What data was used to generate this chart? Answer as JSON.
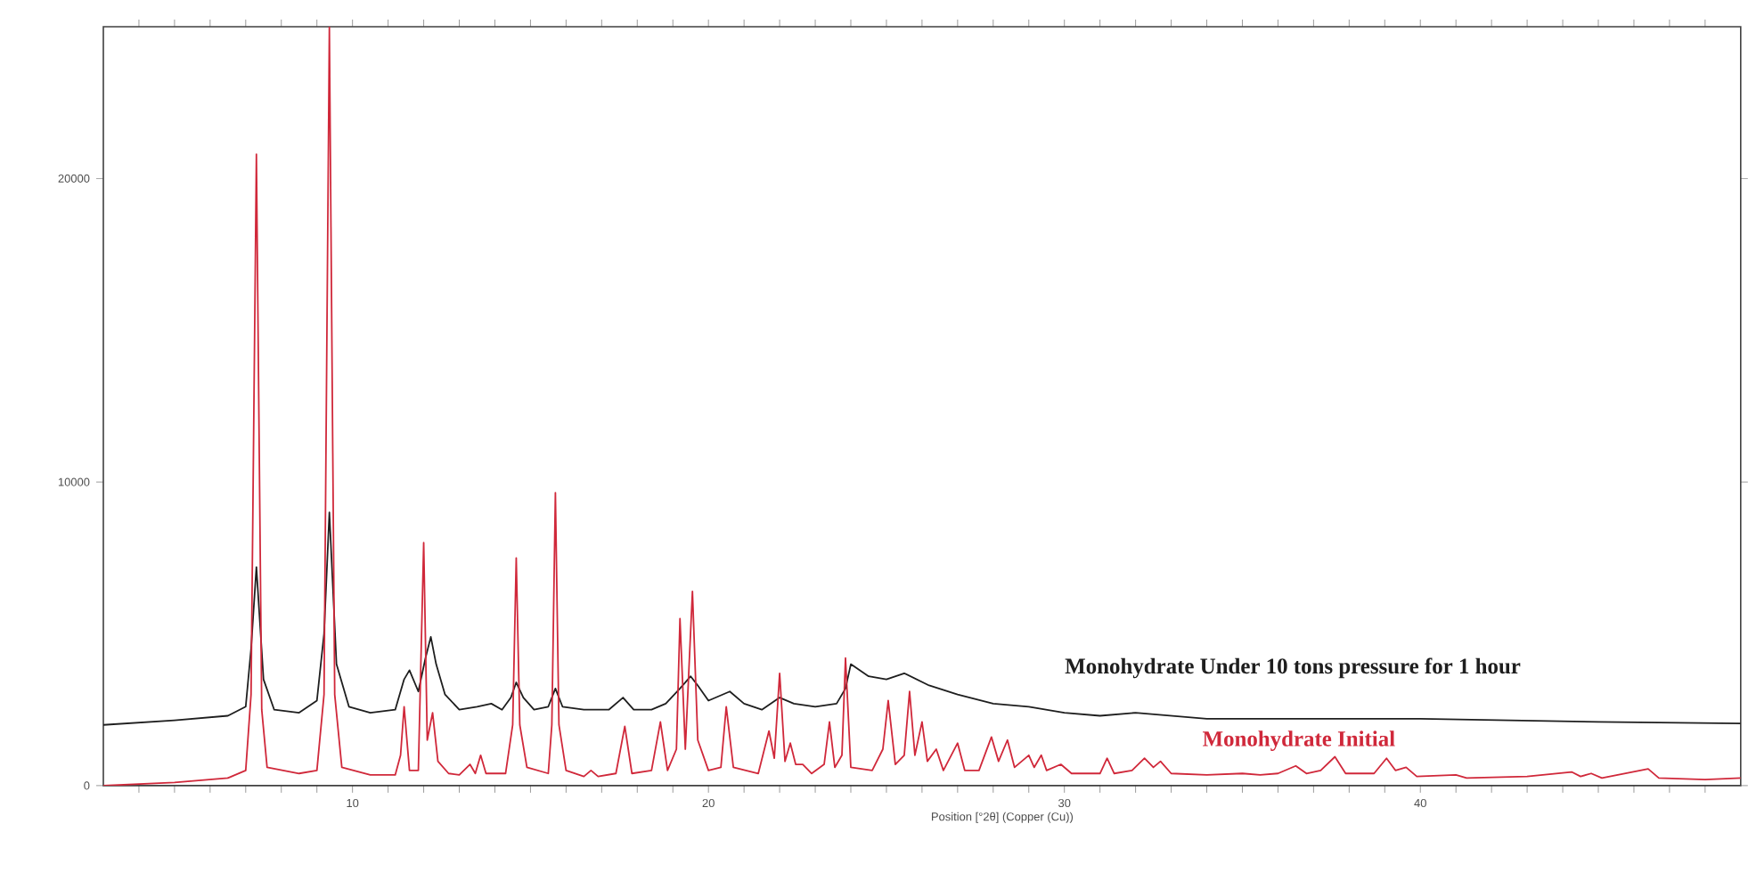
{
  "chart_data": {
    "type": "line",
    "xlabel": "Position [°2θ] (Copper (Cu))",
    "xlim": [
      3,
      49
    ],
    "ylim": [
      0,
      25000
    ],
    "xticks": [
      {
        "value": 4,
        "label": null
      },
      {
        "value": 5,
        "label": null
      },
      {
        "value": 6,
        "label": null
      },
      {
        "value": 7,
        "label": null
      },
      {
        "value": 8,
        "label": null
      },
      {
        "value": 9,
        "label": null
      },
      10,
      {
        "value": 11,
        "label": null
      },
      {
        "value": 12,
        "label": null
      },
      {
        "value": 13,
        "label": null
      },
      {
        "value": 14,
        "label": null
      },
      {
        "value": 15,
        "label": null
      },
      {
        "value": 16,
        "label": null
      },
      {
        "value": 17,
        "label": null
      },
      {
        "value": 18,
        "label": null
      },
      {
        "value": 19,
        "label": null
      },
      20,
      {
        "value": 21,
        "label": null
      },
      {
        "value": 22,
        "label": null
      },
      {
        "value": 23,
        "label": null
      },
      {
        "value": 24,
        "label": null
      },
      {
        "value": 25,
        "label": null
      },
      {
        "value": 26,
        "label": null
      },
      {
        "value": 27,
        "label": null
      },
      {
        "value": 28,
        "label": null
      },
      {
        "value": 29,
        "label": null
      },
      30,
      {
        "value": 31,
        "label": null
      },
      {
        "value": 32,
        "label": null
      },
      {
        "value": 33,
        "label": null
      },
      {
        "value": 34,
        "label": null
      },
      {
        "value": 35,
        "label": null
      },
      {
        "value": 36,
        "label": null
      },
      {
        "value": 37,
        "label": null
      },
      {
        "value": 38,
        "label": null
      },
      {
        "value": 39,
        "label": null
      },
      40,
      {
        "value": 41,
        "label": null
      },
      {
        "value": 42,
        "label": null
      },
      {
        "value": 43,
        "label": null
      },
      {
        "value": 44,
        "label": null
      },
      {
        "value": 45,
        "label": null
      },
      {
        "value": 46,
        "label": null
      },
      {
        "value": 47,
        "label": null
      },
      {
        "value": 48,
        "label": null
      }
    ],
    "yticks": [
      0,
      10000,
      20000
    ],
    "grid": false,
    "legend": false,
    "marker": "none",
    "line_style": "solid",
    "series": [
      {
        "name": "Monohydrate Under 10 tons pressure for 1 hour",
        "color": "#1e1e1e",
        "x": [
          3,
          5,
          6.5,
          7.0,
          7.15,
          7.3,
          7.5,
          7.8,
          8.5,
          9.0,
          9.2,
          9.35,
          9.55,
          9.9,
          10.5,
          11.2,
          11.45,
          11.6,
          11.85,
          12.05,
          12.2,
          12.35,
          12.6,
          13.0,
          13.5,
          13.9,
          14.2,
          14.45,
          14.6,
          14.8,
          15.1,
          15.5,
          15.7,
          15.9,
          16.5,
          17.2,
          17.6,
          17.9,
          18.4,
          18.8,
          19.2,
          19.5,
          19.7,
          20.0,
          20.6,
          21.0,
          21.5,
          22.0,
          22.4,
          23.0,
          23.6,
          23.85,
          24.0,
          24.5,
          25.0,
          25.5,
          26.2,
          27.0,
          28.0,
          29.0,
          30.0,
          31.0,
          32.0,
          34.0,
          37.0,
          40.0,
          45.0,
          49.0
        ],
        "values": [
          2000,
          2150,
          2300,
          2600,
          4500,
          7200,
          3500,
          2500,
          2400,
          2800,
          5000,
          9000,
          4000,
          2600,
          2400,
          2500,
          3500,
          3800,
          3100,
          4200,
          4900,
          4000,
          3000,
          2500,
          2600,
          2700,
          2500,
          2900,
          3400,
          2900,
          2500,
          2600,
          3200,
          2600,
          2500,
          2500,
          2900,
          2500,
          2500,
          2700,
          3200,
          3600,
          3300,
          2800,
          3100,
          2700,
          2500,
          2900,
          2700,
          2600,
          2700,
          3200,
          4000,
          3600,
          3500,
          3700,
          3300,
          3000,
          2700,
          2600,
          2400,
          2300,
          2400,
          2200,
          2200,
          2200,
          2100,
          2050
        ]
      },
      {
        "name": "Monohydrate Initial",
        "color": "#d0283a",
        "x": [
          3,
          5,
          6.5,
          7.0,
          7.15,
          7.3,
          7.45,
          7.6,
          8.5,
          9.0,
          9.2,
          9.35,
          9.5,
          9.7,
          10.5,
          11.2,
          11.35,
          11.45,
          11.6,
          11.85,
          12.0,
          12.1,
          12.25,
          12.4,
          12.7,
          13.0,
          13.3,
          13.45,
          13.6,
          13.75,
          14.3,
          14.5,
          14.6,
          14.7,
          14.9,
          15.5,
          15.6,
          15.7,
          15.8,
          16.0,
          16.5,
          16.7,
          16.9,
          17.4,
          17.65,
          17.85,
          18.4,
          18.65,
          18.85,
          19.1,
          19.2,
          19.35,
          19.55,
          19.7,
          20.0,
          20.35,
          20.5,
          20.7,
          21.4,
          21.7,
          21.85,
          22.0,
          22.15,
          22.3,
          22.45,
          22.65,
          22.9,
          23.25,
          23.4,
          23.55,
          23.75,
          23.85,
          24.0,
          24.6,
          24.9,
          25.05,
          25.25,
          25.5,
          25.65,
          25.8,
          26.0,
          26.15,
          26.4,
          26.6,
          27.0,
          27.2,
          27.6,
          27.95,
          28.15,
          28.4,
          28.6,
          29.0,
          29.15,
          29.35,
          29.5,
          29.9,
          30.2,
          31.0,
          31.2,
          31.4,
          31.9,
          32.25,
          32.5,
          32.7,
          33.0,
          34.0,
          35.0,
          35.5,
          36.0,
          36.5,
          36.8,
          37.2,
          37.6,
          37.9,
          38.7,
          39.05,
          39.3,
          39.6,
          39.9,
          41.0,
          41.3,
          43.0,
          44.25,
          44.5,
          44.8,
          45.1,
          46.4,
          46.7,
          48,
          49
        ],
        "values": [
          0,
          100,
          250,
          500,
          3000,
          20800,
          2500,
          600,
          400,
          500,
          3000,
          25000,
          3000,
          600,
          350,
          350,
          1000,
          2600,
          500,
          500,
          8000,
          1500,
          2400,
          800,
          400,
          350,
          700,
          400,
          1000,
          400,
          400,
          2000,
          7500,
          2000,
          600,
          400,
          2000,
          9650,
          2000,
          500,
          300,
          500,
          300,
          400,
          1950,
          400,
          500,
          2100,
          500,
          1200,
          5500,
          1200,
          6400,
          1500,
          500,
          600,
          2600,
          600,
          400,
          1800,
          900,
          3700,
          800,
          1400,
          700,
          700,
          400,
          700,
          2100,
          600,
          1000,
          4200,
          600,
          500,
          1200,
          2800,
          700,
          1000,
          3100,
          1000,
          2100,
          800,
          1200,
          500,
          1400,
          500,
          500,
          1600,
          800,
          1500,
          600,
          1000,
          600,
          1000,
          500,
          700,
          400,
          400,
          900,
          400,
          500,
          900,
          600,
          800,
          400,
          350,
          400,
          350,
          400,
          650,
          400,
          500,
          950,
          400,
          400,
          900,
          500,
          600,
          300,
          350,
          250,
          300,
          450,
          300,
          400,
          250,
          550,
          250,
          200,
          250
        ]
      }
    ]
  }
}
